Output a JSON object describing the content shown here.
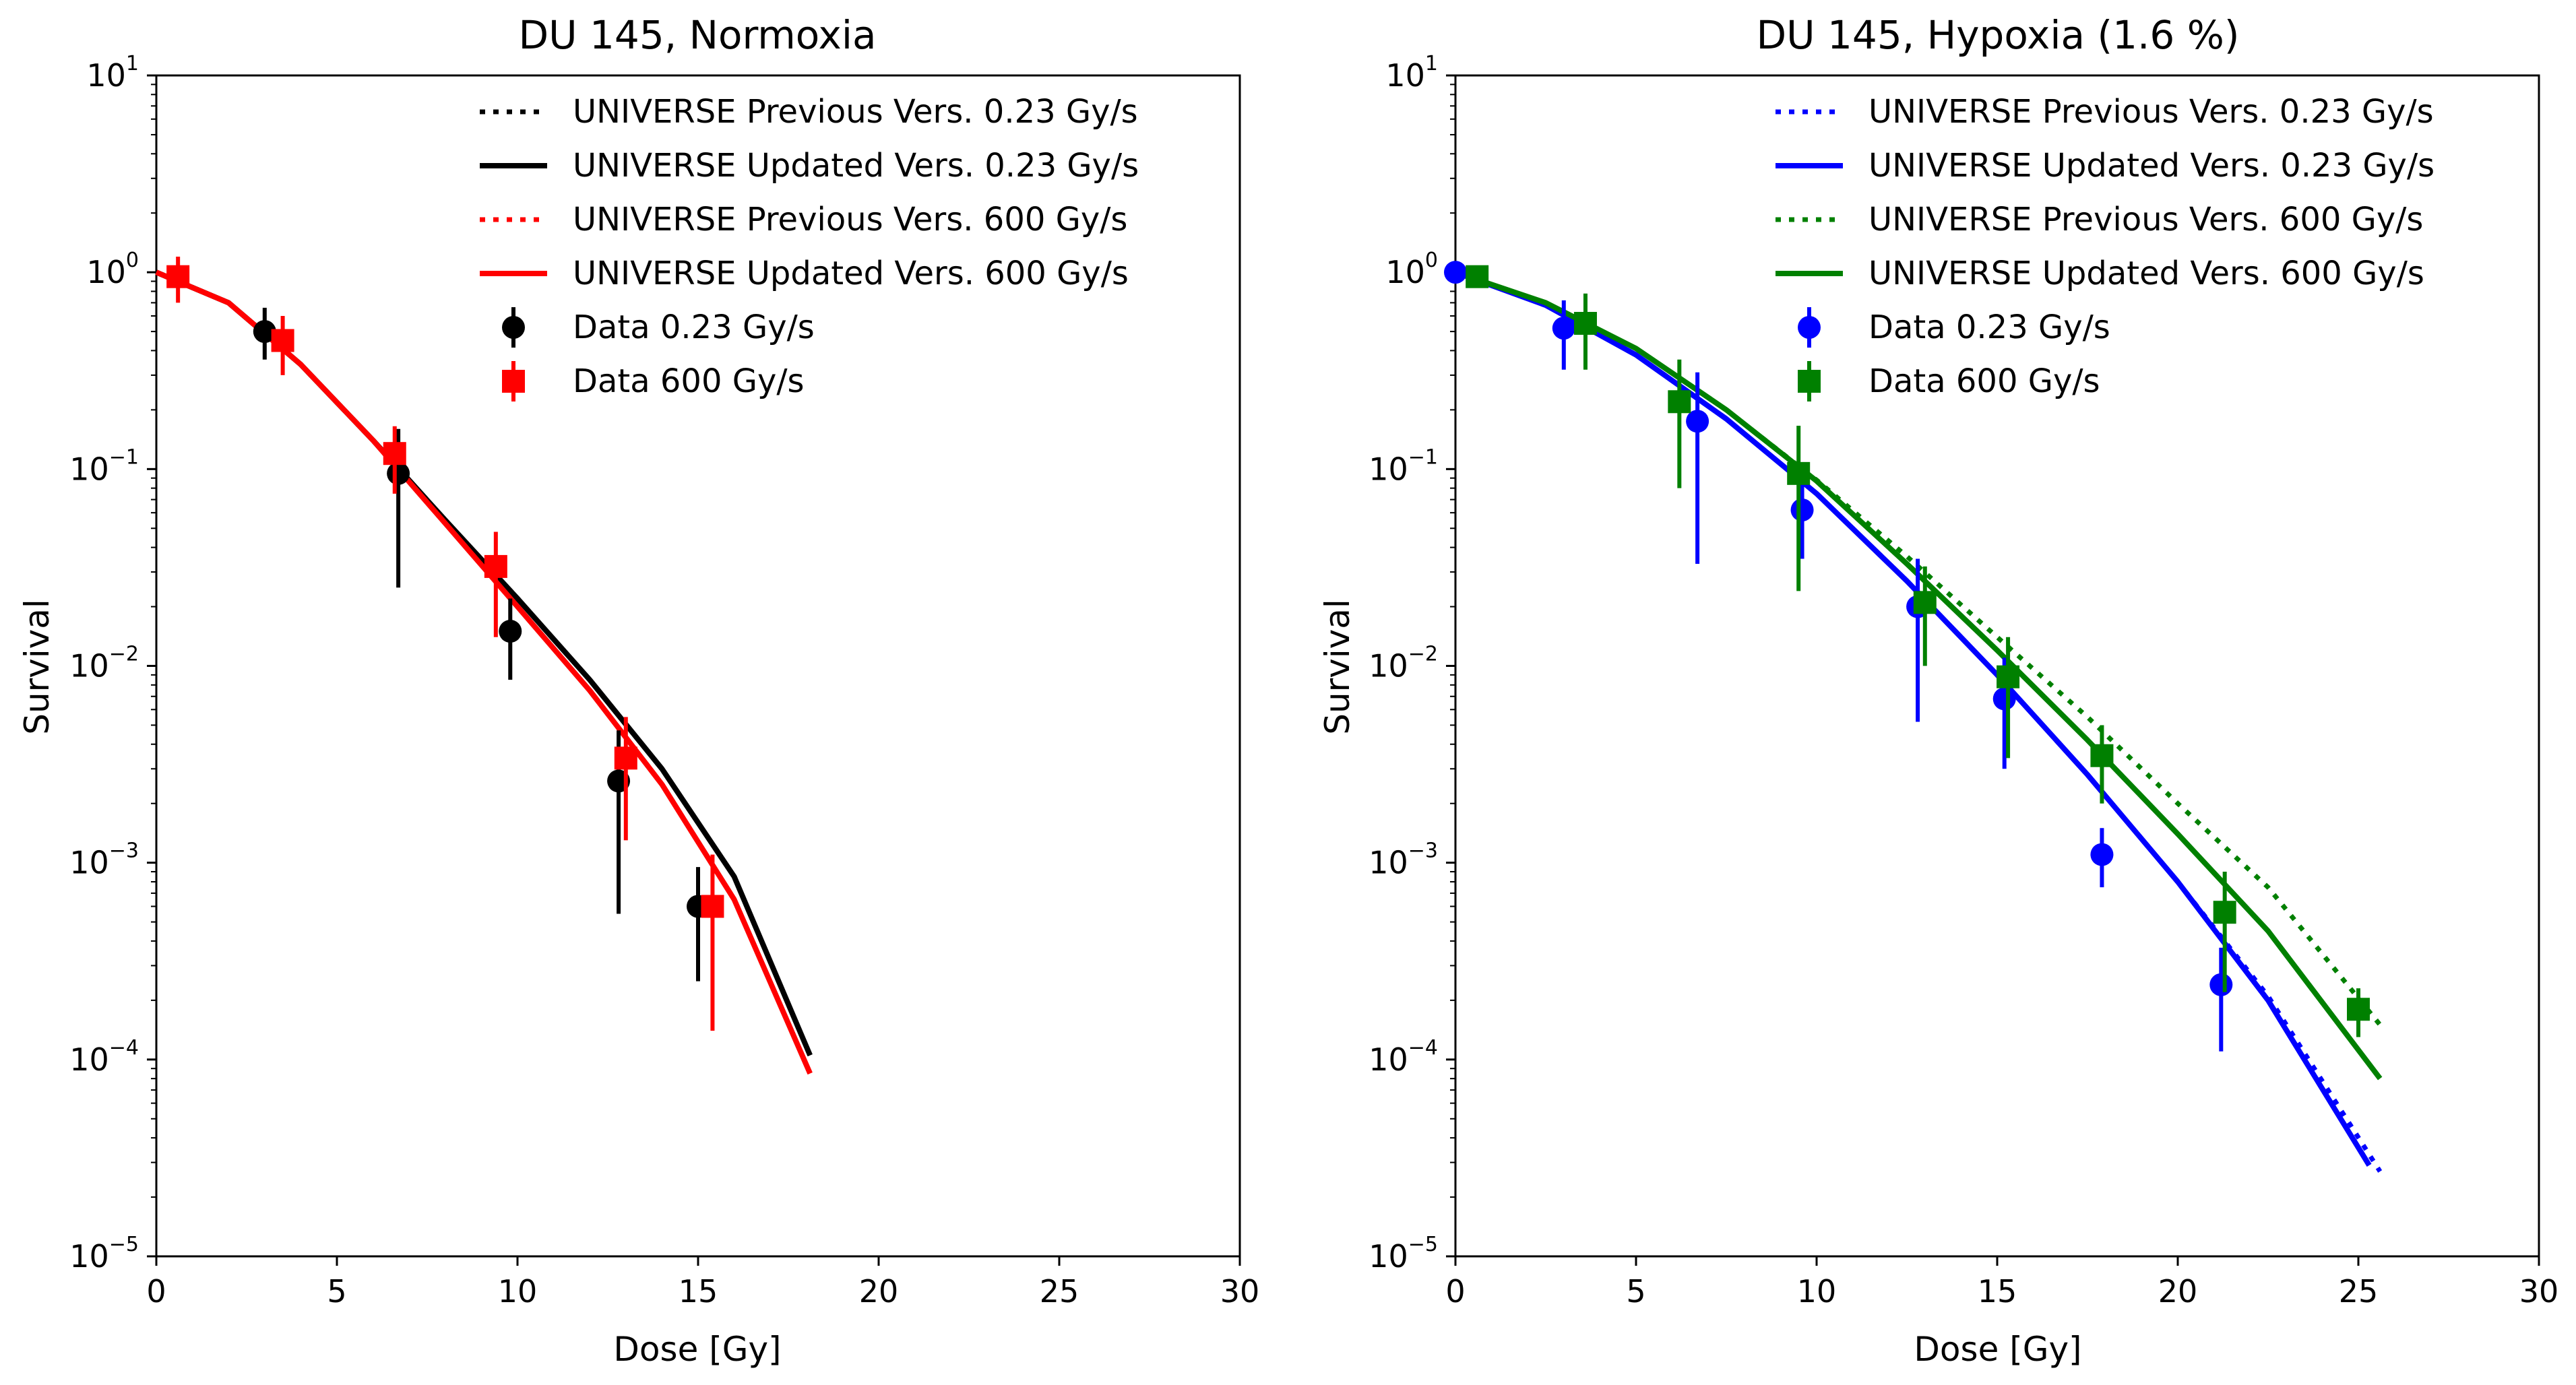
{
  "chart_data": [
    {
      "type": "line",
      "title": "DU 145, Normoxia",
      "xlabel": "Dose [Gy]",
      "ylabel": "Survival",
      "xlim": [
        0,
        30
      ],
      "ylim": [
        1e-05,
        10
      ],
      "yscale": "log",
      "xticks": [
        0,
        5,
        10,
        15,
        20,
        25,
        30
      ],
      "yticks": [
        {
          "base": "10",
          "exp": "1"
        },
        {
          "base": "10",
          "exp": "0"
        },
        {
          "base": "10",
          "exp": "−1"
        },
        {
          "base": "10",
          "exp": "−2"
        },
        {
          "base": "10",
          "exp": "−3"
        },
        {
          "base": "10",
          "exp": "−4"
        },
        {
          "base": "10",
          "exp": "−5"
        }
      ],
      "legend_position": "top-right",
      "series": [
        {
          "name": "UNIVERSE Previous Vers. 0.23 Gy/s",
          "kind": "line",
          "style": "dotted",
          "color": "#000000",
          "x": [
            0,
            2,
            4,
            6,
            8,
            10,
            12,
            14,
            16,
            18.1
          ],
          "y": [
            1.0,
            0.7,
            0.34,
            0.14,
            0.055,
            0.022,
            0.0085,
            0.003,
            0.00085,
            0.000105
          ]
        },
        {
          "name": "UNIVERSE Updated Vers. 0.23 Gy/s",
          "kind": "line",
          "style": "solid",
          "color": "#000000",
          "x": [
            0,
            2,
            4,
            6,
            8,
            10,
            12,
            14,
            16,
            18.1
          ],
          "y": [
            1.0,
            0.7,
            0.34,
            0.14,
            0.055,
            0.022,
            0.0085,
            0.003,
            0.00085,
            0.000105
          ]
        },
        {
          "name": "UNIVERSE Previous Vers. 600 Gy/s",
          "kind": "line",
          "style": "dotted",
          "color": "#ff0000",
          "x": [
            0,
            2,
            4,
            6,
            8,
            10,
            12,
            14,
            16,
            18.1
          ],
          "y": [
            1.0,
            0.7,
            0.34,
            0.14,
            0.053,
            0.02,
            0.0075,
            0.0025,
            0.00065,
            8.5e-05
          ]
        },
        {
          "name": "UNIVERSE Updated Vers. 600 Gy/s",
          "kind": "line",
          "style": "solid",
          "color": "#ff0000",
          "x": [
            0,
            2,
            4,
            6,
            8,
            10,
            12,
            14,
            16,
            18.1
          ],
          "y": [
            1.0,
            0.7,
            0.34,
            0.14,
            0.053,
            0.02,
            0.0075,
            0.0025,
            0.00065,
            8.5e-05
          ]
        },
        {
          "name": "Data 0.23 Gy/s",
          "kind": "points",
          "marker": "circle",
          "color": "#000000",
          "points": [
            {
              "x": 3.0,
              "y": 0.5,
              "lo": 0.36,
              "hi": 0.66
            },
            {
              "x": 6.7,
              "y": 0.095,
              "lo": 0.025,
              "hi": 0.16
            },
            {
              "x": 9.8,
              "y": 0.015,
              "lo": 0.0085,
              "hi": 0.022
            },
            {
              "x": 12.8,
              "y": 0.0026,
              "lo": 0.00055,
              "hi": 0.0047
            },
            {
              "x": 15.0,
              "y": 0.0006,
              "lo": 0.00025,
              "hi": 0.00095
            }
          ]
        },
        {
          "name": "Data  600 Gy/s",
          "kind": "points",
          "marker": "square",
          "color": "#ff0000",
          "points": [
            {
              "x": 0.6,
              "y": 0.95,
              "lo": 0.7,
              "hi": 1.2
            },
            {
              "x": 3.5,
              "y": 0.45,
              "lo": 0.3,
              "hi": 0.6
            },
            {
              "x": 6.6,
              "y": 0.12,
              "lo": 0.075,
              "hi": 0.165
            },
            {
              "x": 9.4,
              "y": 0.032,
              "lo": 0.014,
              "hi": 0.048
            },
            {
              "x": 13.0,
              "y": 0.0034,
              "lo": 0.0013,
              "hi": 0.0055
            },
            {
              "x": 15.4,
              "y": 0.0006,
              "lo": 0.00014,
              "hi": 0.0011
            }
          ]
        }
      ]
    },
    {
      "type": "line",
      "title": "DU 145, Hypoxia (1.6 %)",
      "xlabel": "Dose [Gy]",
      "ylabel": "Survival",
      "xlim": [
        0,
        30
      ],
      "ylim": [
        1e-05,
        10
      ],
      "yscale": "log",
      "xticks": [
        0,
        5,
        10,
        15,
        20,
        25,
        30
      ],
      "yticks": [
        {
          "base": "10",
          "exp": "1"
        },
        {
          "base": "10",
          "exp": "0"
        },
        {
          "base": "10",
          "exp": "−1"
        },
        {
          "base": "10",
          "exp": "−2"
        },
        {
          "base": "10",
          "exp": "−3"
        },
        {
          "base": "10",
          "exp": "−4"
        },
        {
          "base": "10",
          "exp": "−5"
        }
      ],
      "legend_position": "top-right",
      "series": [
        {
          "name": "UNIVERSE Previous Vers. 0.23 Gy/s",
          "kind": "line",
          "style": "dotted",
          "color": "#0000ff",
          "x": [
            0,
            2.5,
            5,
            7.5,
            10,
            12.5,
            15,
            17.5,
            20,
            22.5,
            25.6
          ],
          "y": [
            1.0,
            0.68,
            0.38,
            0.18,
            0.075,
            0.027,
            0.009,
            0.0028,
            0.0008,
            0.00021,
            2.7e-05
          ]
        },
        {
          "name": "UNIVERSE Updated Vers. 0.23 Gy/s",
          "kind": "line",
          "style": "solid",
          "color": "#0000ff",
          "x": [
            0,
            2.5,
            5,
            7.5,
            10,
            12.5,
            15,
            17.5,
            20,
            22.5,
            25.3
          ],
          "y": [
            1.0,
            0.68,
            0.38,
            0.18,
            0.075,
            0.027,
            0.009,
            0.0028,
            0.0008,
            0.0002,
            2.9e-05
          ]
        },
        {
          "name": "UNIVERSE Previous Vers. 600 Gy/s",
          "kind": "line",
          "style": "dotted",
          "color": "#008000",
          "x": [
            0,
            2.5,
            5,
            7.5,
            10,
            12.5,
            15,
            17.5,
            20,
            22.5,
            25.6
          ],
          "y": [
            1.0,
            0.7,
            0.41,
            0.2,
            0.088,
            0.036,
            0.014,
            0.0055,
            0.002,
            0.00075,
            0.00015
          ]
        },
        {
          "name": "UNIVERSE Updated Vers. 600 Gy/s",
          "kind": "line",
          "style": "solid",
          "color": "#008000",
          "x": [
            0,
            2.5,
            5,
            7.5,
            10,
            12.5,
            15,
            17.5,
            20,
            22.5,
            25.6
          ],
          "y": [
            1.0,
            0.7,
            0.41,
            0.2,
            0.087,
            0.033,
            0.012,
            0.0042,
            0.0014,
            0.00045,
            8e-05
          ]
        },
        {
          "name": "Data 0.23 Gy/s",
          "kind": "points",
          "marker": "circle",
          "color": "#0000ff",
          "points": [
            {
              "x": 0.0,
              "y": 1.0,
              "lo": 0.95,
              "hi": 1.05
            },
            {
              "x": 3.0,
              "y": 0.52,
              "lo": 0.32,
              "hi": 0.72
            },
            {
              "x": 6.7,
              "y": 0.175,
              "lo": 0.033,
              "hi": 0.31
            },
            {
              "x": 9.6,
              "y": 0.062,
              "lo": 0.035,
              "hi": 0.09
            },
            {
              "x": 12.8,
              "y": 0.02,
              "lo": 0.0052,
              "hi": 0.035
            },
            {
              "x": 15.2,
              "y": 0.0068,
              "lo": 0.003,
              "hi": 0.011
            },
            {
              "x": 17.9,
              "y": 0.0011,
              "lo": 0.00075,
              "hi": 0.0015
            },
            {
              "x": 21.2,
              "y": 0.00024,
              "lo": 0.00011,
              "hi": 0.00037
            }
          ]
        },
        {
          "name": "Data 600 Gy/s",
          "kind": "points",
          "marker": "square",
          "color": "#008000",
          "points": [
            {
              "x": 0.6,
              "y": 0.95,
              "lo": 0.9,
              "hi": 1.0
            },
            {
              "x": 3.6,
              "y": 0.55,
              "lo": 0.32,
              "hi": 0.78
            },
            {
              "x": 6.2,
              "y": 0.22,
              "lo": 0.08,
              "hi": 0.36
            },
            {
              "x": 9.5,
              "y": 0.095,
              "lo": 0.024,
              "hi": 0.166
            },
            {
              "x": 13.0,
              "y": 0.021,
              "lo": 0.01,
              "hi": 0.032
            },
            {
              "x": 15.3,
              "y": 0.0088,
              "lo": 0.0034,
              "hi": 0.014
            },
            {
              "x": 17.9,
              "y": 0.0035,
              "lo": 0.002,
              "hi": 0.005
            },
            {
              "x": 21.3,
              "y": 0.00056,
              "lo": 0.00022,
              "hi": 0.0009
            },
            {
              "x": 25.0,
              "y": 0.00018,
              "lo": 0.00013,
              "hi": 0.00023
            }
          ]
        }
      ]
    }
  ]
}
